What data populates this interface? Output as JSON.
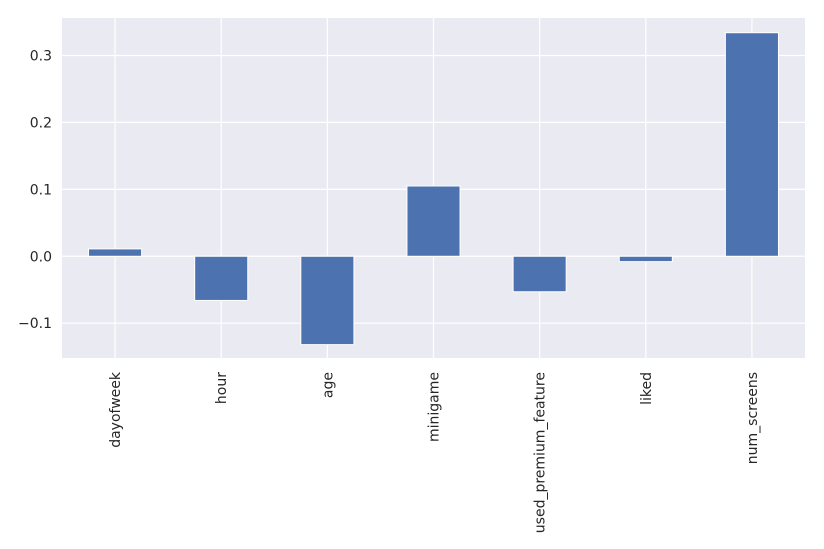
{
  "chart_data": {
    "type": "bar",
    "title": "",
    "xlabel": "",
    "ylabel": "",
    "categories": [
      "dayofweek",
      "hour",
      "age",
      "minigame",
      "used_premium_feature",
      "liked",
      "num_screens"
    ],
    "values": [
      0.011,
      -0.066,
      -0.132,
      0.105,
      -0.053,
      -0.008,
      0.334
    ],
    "ylim": [
      -0.152,
      0.356
    ],
    "yticks": [
      -0.1,
      0.0,
      0.1,
      0.2,
      0.3
    ],
    "ytick_labels": [
      "−0.1",
      "0.0",
      "0.1",
      "0.2",
      "0.3"
    ],
    "grid": true,
    "legend": "none",
    "colors": {
      "bar": "#4c72b0",
      "plot_background": "#eaeaf2",
      "grid": "#ffffff",
      "text": "#262626"
    }
  }
}
